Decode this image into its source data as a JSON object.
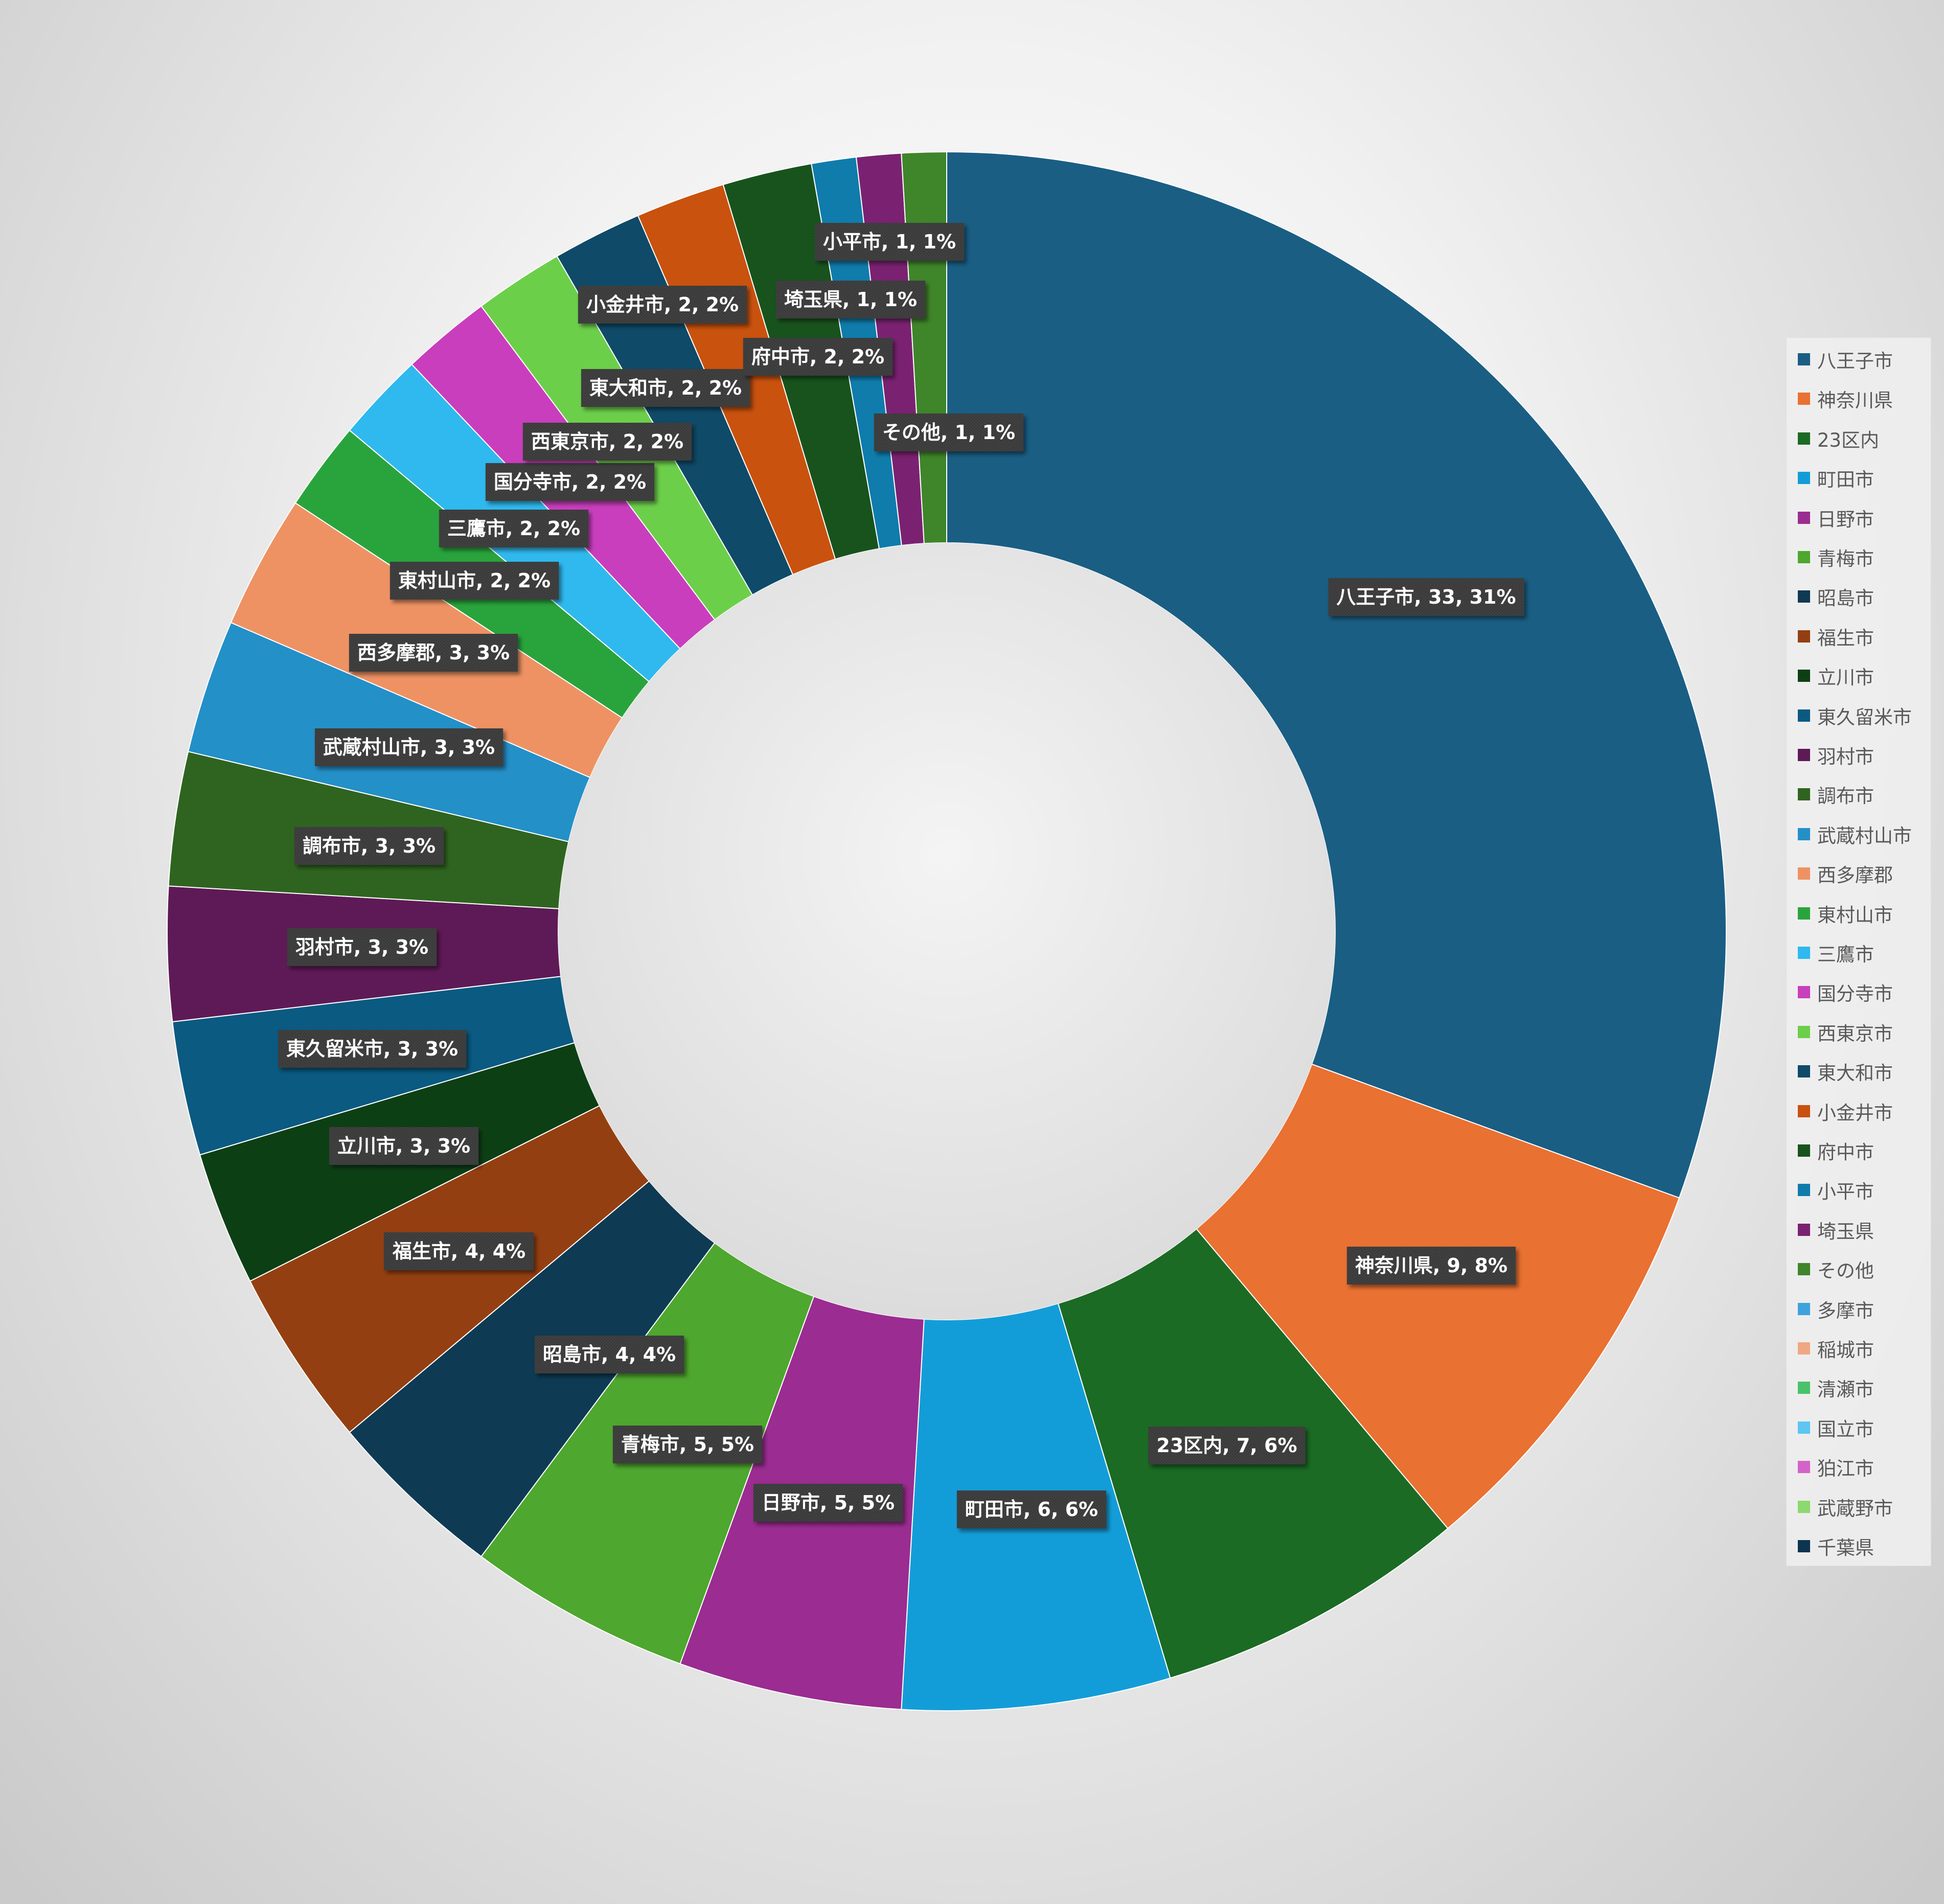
{
  "chart_data": {
    "type": "pie",
    "variant": "donut",
    "title": "",
    "legend_position": "right",
    "slices": [
      {
        "name": "八王子市",
        "value": 33,
        "percent": "31%",
        "color": "#1a5e84"
      },
      {
        "name": "神奈川県",
        "value": 9,
        "percent": "8%",
        "color": "#e97132"
      },
      {
        "name": "23区内",
        "value": 7,
        "percent": "6%",
        "color": "#1b6b24"
      },
      {
        "name": "町田市",
        "value": 6,
        "percent": "6%",
        "color": "#139dd8"
      },
      {
        "name": "日野市",
        "value": 5,
        "percent": "5%",
        "color": "#9b2c91"
      },
      {
        "name": "青梅市",
        "value": 5,
        "percent": "5%",
        "color": "#4ea72e"
      },
      {
        "name": "昭島市",
        "value": 4,
        "percent": "4%",
        "color": "#0e3a53"
      },
      {
        "name": "福生市",
        "value": 4,
        "percent": "4%",
        "color": "#943f11"
      },
      {
        "name": "立川市",
        "value": 3,
        "percent": "3%",
        "color": "#0d3f15"
      },
      {
        "name": "東久留米市",
        "value": 3,
        "percent": "3%",
        "color": "#0a5a82"
      },
      {
        "name": "羽村市",
        "value": 3,
        "percent": "3%",
        "color": "#5e1a56"
      },
      {
        "name": "調布市",
        "value": 3,
        "percent": "3%",
        "color": "#2f6420"
      },
      {
        "name": "武蔵村山市",
        "value": 3,
        "percent": "3%",
        "color": "#2490c8"
      },
      {
        "name": "西多摩郡",
        "value": 3,
        "percent": "3%",
        "color": "#ee9263"
      },
      {
        "name": "東村山市",
        "value": 2,
        "percent": "2%",
        "color": "#29a43c"
      },
      {
        "name": "三鷹市",
        "value": 2,
        "percent": "2%",
        "color": "#2fb9ee"
      },
      {
        "name": "国分寺市",
        "value": 2,
        "percent": "2%",
        "color": "#c93ebd"
      },
      {
        "name": "西東京市",
        "value": 2,
        "percent": "2%",
        "color": "#6ccf4a"
      },
      {
        "name": "東大和市",
        "value": 2,
        "percent": "2%",
        "color": "#0f4a68"
      },
      {
        "name": "小金井市",
        "value": 2,
        "percent": "2%",
        "color": "#c9520e"
      },
      {
        "name": "府中市",
        "value": 2,
        "percent": "2%",
        "color": "#18531d"
      },
      {
        "name": "小平市",
        "value": 1,
        "percent": "1%",
        "color": "#0f7cac"
      },
      {
        "name": "埼玉県",
        "value": 1,
        "percent": "1%",
        "color": "#7a2271"
      },
      {
        "name": "その他",
        "value": 1,
        "percent": "1%",
        "color": "#3f852a"
      }
    ],
    "legend": [
      {
        "name": "八王子市",
        "color": "#1a5e84"
      },
      {
        "name": "神奈川県",
        "color": "#e97132"
      },
      {
        "name": "23区内",
        "color": "#1b6b24"
      },
      {
        "name": "町田市",
        "color": "#139dd8"
      },
      {
        "name": "日野市",
        "color": "#9b2c91"
      },
      {
        "name": "青梅市",
        "color": "#4ea72e"
      },
      {
        "name": "昭島市",
        "color": "#0e3a53"
      },
      {
        "name": "福生市",
        "color": "#943f11"
      },
      {
        "name": "立川市",
        "color": "#0d3f15"
      },
      {
        "name": "東久留米市",
        "color": "#0a5a82"
      },
      {
        "name": "羽村市",
        "color": "#5e1a56"
      },
      {
        "name": "調布市",
        "color": "#2f6420"
      },
      {
        "name": "武蔵村山市",
        "color": "#2490c8"
      },
      {
        "name": "西多摩郡",
        "color": "#ee9263"
      },
      {
        "name": "東村山市",
        "color": "#29a43c"
      },
      {
        "name": "三鷹市",
        "color": "#2fb9ee"
      },
      {
        "name": "国分寺市",
        "color": "#c93ebd"
      },
      {
        "name": "西東京市",
        "color": "#6ccf4a"
      },
      {
        "name": "東大和市",
        "color": "#0f4a68"
      },
      {
        "name": "小金井市",
        "color": "#c9520e"
      },
      {
        "name": "府中市",
        "color": "#18531d"
      },
      {
        "name": "小平市",
        "color": "#0f7cac"
      },
      {
        "name": "埼玉県",
        "color": "#7a2271"
      },
      {
        "name": "その他",
        "color": "#3f852a"
      },
      {
        "name": "多摩市",
        "color": "#3ea2dd"
      },
      {
        "name": "稲城市",
        "color": "#f0a884"
      },
      {
        "name": "清瀬市",
        "color": "#48c36a"
      },
      {
        "name": "国立市",
        "color": "#5cc6f2"
      },
      {
        "name": "狛江市",
        "color": "#d463c9"
      },
      {
        "name": "武蔵野市",
        "color": "#8cd96d"
      },
      {
        "name": "千葉県",
        "color": "#0c3550"
      }
    ]
  }
}
